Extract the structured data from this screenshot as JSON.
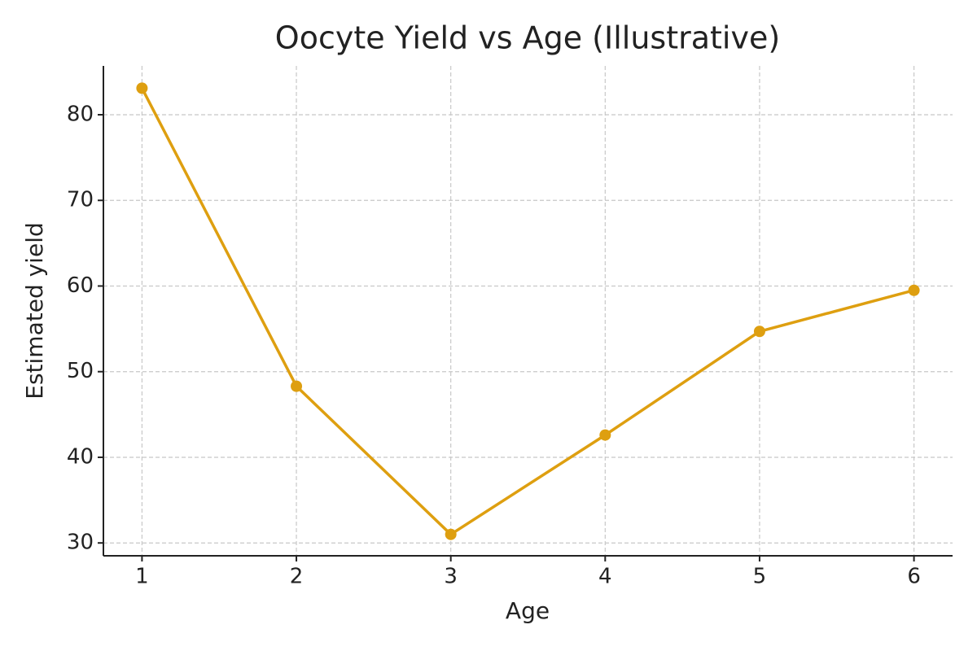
{
  "chart_data": {
    "type": "line",
    "title": "Oocyte Yield vs Age (Illustrative)",
    "x_label": "Age",
    "y_label": "Estimated yield",
    "x": [
      1,
      2,
      3,
      4,
      5,
      6
    ],
    "series": [
      {
        "name": "Estimated yield",
        "color": "#de9f10",
        "values": [
          83.1,
          48.3,
          31.0,
          42.6,
          54.7,
          59.5
        ]
      }
    ],
    "xlim": [
      0.75,
      6.25
    ],
    "xticks": [
      1,
      2,
      3,
      4,
      5,
      6
    ],
    "ylim": [
      28.5,
      85.7
    ],
    "yticks": [
      30,
      40,
      50,
      60,
      70,
      80
    ],
    "grid": true
  }
}
